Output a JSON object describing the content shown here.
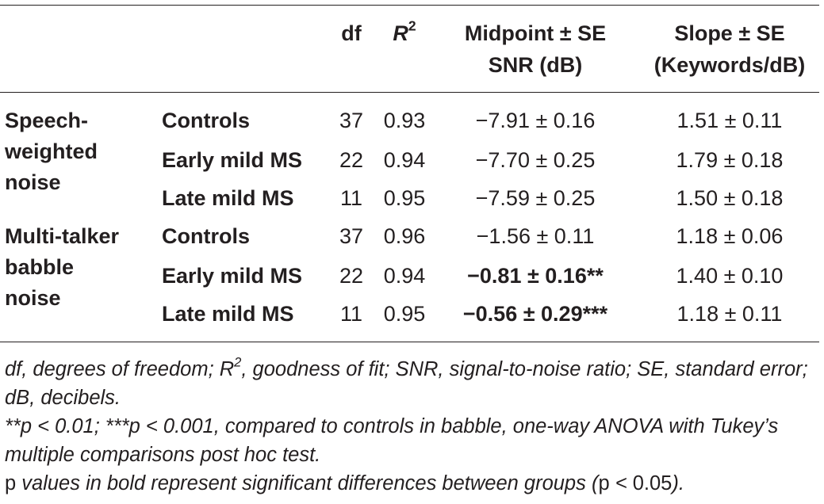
{
  "table": {
    "headers": {
      "df": "df",
      "r2_base": "R",
      "r2_sup": "2",
      "midpoint_line1": "Midpoint ± SE",
      "midpoint_line2": "SNR (dB)",
      "slope_line1": "Slope ± SE",
      "slope_line2": "(Keywords/dB)"
    },
    "groups": [
      {
        "lines": [
          "Speech-",
          "weighted",
          "noise"
        ]
      },
      {
        "lines": [
          "Multi-talker",
          "babble",
          "noise"
        ]
      }
    ],
    "rows": [
      {
        "label": "Controls",
        "df": "37",
        "r2": "0.93",
        "midpoint": "−7.91 ± 0.16",
        "slope": "1.51 ± 0.11",
        "midpoint_bold": false
      },
      {
        "label": "Early mild MS",
        "df": "22",
        "r2": "0.94",
        "midpoint": "−7.70 ± 0.25",
        "slope": "1.79 ± 0.18",
        "midpoint_bold": false
      },
      {
        "label": "Late mild MS",
        "df": "11",
        "r2": "0.95",
        "midpoint": "−7.59 ± 0.25",
        "slope": "1.50 ± 0.18",
        "midpoint_bold": false
      },
      {
        "label": "Controls",
        "df": "37",
        "r2": "0.96",
        "midpoint": "−1.56 ± 0.11",
        "slope": "1.18 ± 0.06",
        "midpoint_bold": false
      },
      {
        "label": "Early mild MS",
        "df": "22",
        "r2": "0.94",
        "midpoint": "−0.81 ± 0.16**",
        "slope": "1.40 ± 0.10",
        "midpoint_bold": true
      },
      {
        "label": "Late mild MS",
        "df": "11",
        "r2": "0.95",
        "midpoint": "−0.56 ± 0.29***",
        "slope": "1.18 ± 0.11",
        "midpoint_bold": true
      }
    ]
  },
  "footnotes": {
    "line1_a": "df, degrees of freedom; R",
    "line1_sup": "2",
    "line1_b": ", goodness of fit; SNR, signal-to-noise ratio; SE, standard error; dB, decibels.",
    "line2": "**p < 0.01; ***p < 0.001, compared to controls in babble, one-way ANOVA with Tukey’s multiple comparisons post hoc test.",
    "line3_p": "p",
    "line3_mid": " values in bold represent significant differences between groups (",
    "line3_p2": "p",
    "line3_lt": " < ",
    "line3_val": "0.05",
    "line3_end": ")."
  }
}
